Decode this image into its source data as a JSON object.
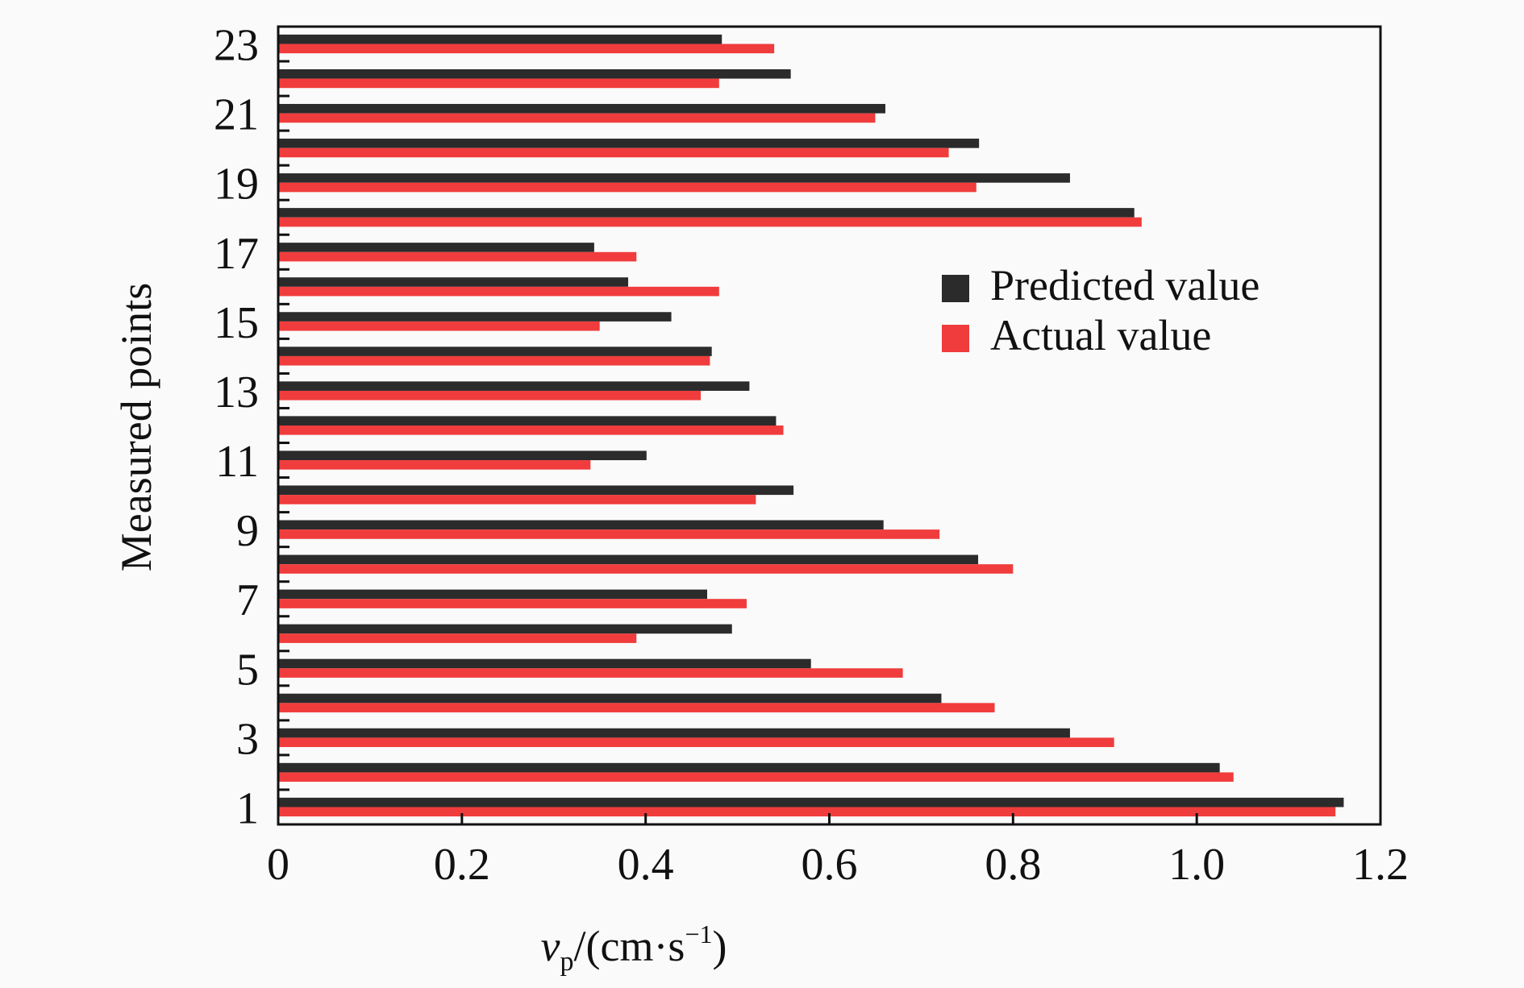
{
  "chart_data": {
    "type": "bar",
    "orientation": "horizontal",
    "title": "",
    "xlabel": {
      "base": "v",
      "subscript": "p",
      "rest": "/(cm·s",
      "superscript": "−1",
      "close": ")"
    },
    "ylabel": "Measured points",
    "xlim": [
      0,
      1.2
    ],
    "ylim": [
      0.5,
      23.5
    ],
    "x_ticks": [
      "0",
      "0.2",
      "0.4",
      "0.6",
      "0.8",
      "1.0",
      "1.2"
    ],
    "y_tick_labels": [
      "1",
      "3",
      "5",
      "7",
      "9",
      "11",
      "13",
      "15",
      "17",
      "19",
      "21",
      "23"
    ],
    "categories": [
      1,
      2,
      3,
      4,
      5,
      6,
      7,
      8,
      9,
      10,
      11,
      12,
      13,
      14,
      15,
      16,
      17,
      18,
      19,
      20,
      21,
      22,
      23
    ],
    "series": [
      {
        "name": "Predicted value",
        "color": "#2b2b2b",
        "values": [
          1.16,
          1.025,
          0.862,
          0.722,
          0.58,
          0.494,
          0.467,
          0.762,
          0.659,
          0.561,
          0.401,
          0.542,
          0.513,
          0.472,
          0.428,
          0.381,
          0.344,
          0.932,
          0.862,
          0.763,
          0.661,
          0.558,
          0.483
        ]
      },
      {
        "name": "Actual value",
        "color": "#f03c3c",
        "values": [
          1.151,
          1.04,
          0.91,
          0.78,
          0.68,
          0.39,
          0.51,
          0.8,
          0.72,
          0.52,
          0.34,
          0.55,
          0.46,
          0.47,
          0.35,
          0.48,
          0.39,
          0.94,
          0.76,
          0.73,
          0.65,
          0.48,
          0.54
        ]
      }
    ],
    "legend": {
      "position": "right-middle"
    },
    "grid": false
  }
}
